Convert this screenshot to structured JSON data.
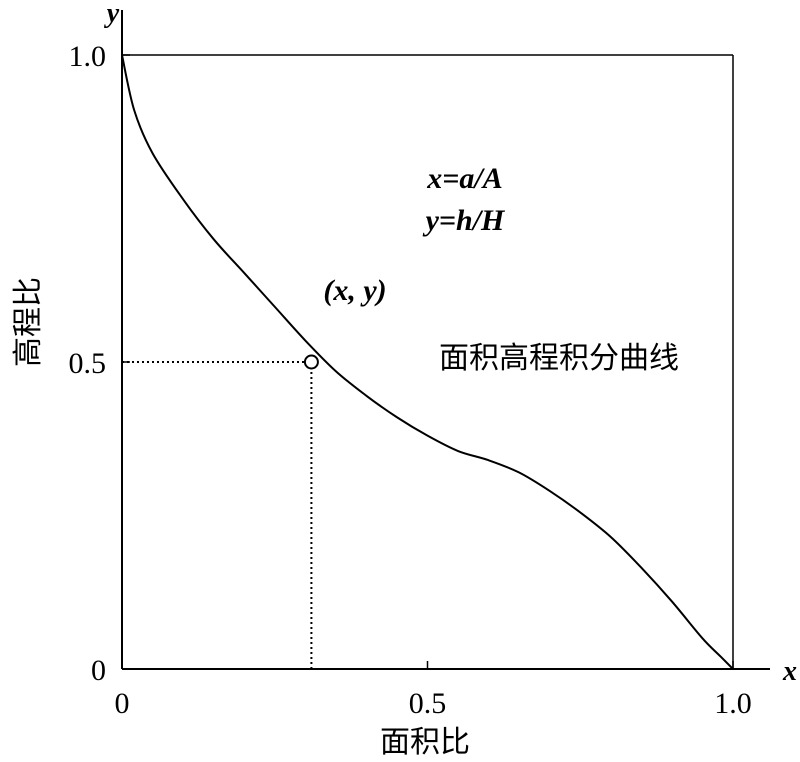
{
  "chart_data": {
    "type": "line",
    "title": "",
    "xlabel": "面积比",
    "ylabel": "高程比",
    "x_axis_symbol": "x",
    "y_axis_symbol": "y",
    "xlim": [
      0,
      1.0
    ],
    "ylim": [
      0,
      1.0
    ],
    "x_ticks": [
      {
        "value": 0,
        "label": "0"
      },
      {
        "value": 0.5,
        "label": "0.5"
      },
      {
        "value": 1.0,
        "label": "1.0"
      }
    ],
    "y_ticks": [
      {
        "value": 0,
        "label": "0"
      },
      {
        "value": 0.5,
        "label": "0.5"
      },
      {
        "value": 1.0,
        "label": "1.0"
      }
    ],
    "grid": false,
    "series": [
      {
        "name": "面积高程积分曲线",
        "x": [
          0,
          0.02,
          0.05,
          0.1,
          0.15,
          0.2,
          0.25,
          0.3,
          0.35,
          0.4,
          0.45,
          0.5,
          0.55,
          0.6,
          0.65,
          0.7,
          0.75,
          0.8,
          0.85,
          0.9,
          0.95,
          0.98,
          1.0
        ],
        "y": [
          1.0,
          0.91,
          0.84,
          0.765,
          0.7,
          0.645,
          0.59,
          0.535,
          0.485,
          0.445,
          0.41,
          0.38,
          0.355,
          0.34,
          0.32,
          0.29,
          0.255,
          0.215,
          0.165,
          0.11,
          0.05,
          0.02,
          0.0
        ]
      }
    ],
    "highlight_point": {
      "x": 0.31,
      "y": 0.5,
      "label": "(x, y)"
    },
    "annotations": {
      "formula_x": "x=a/A",
      "formula_y": "y=h/H",
      "curve_label": "面积高程积分曲线"
    }
  }
}
